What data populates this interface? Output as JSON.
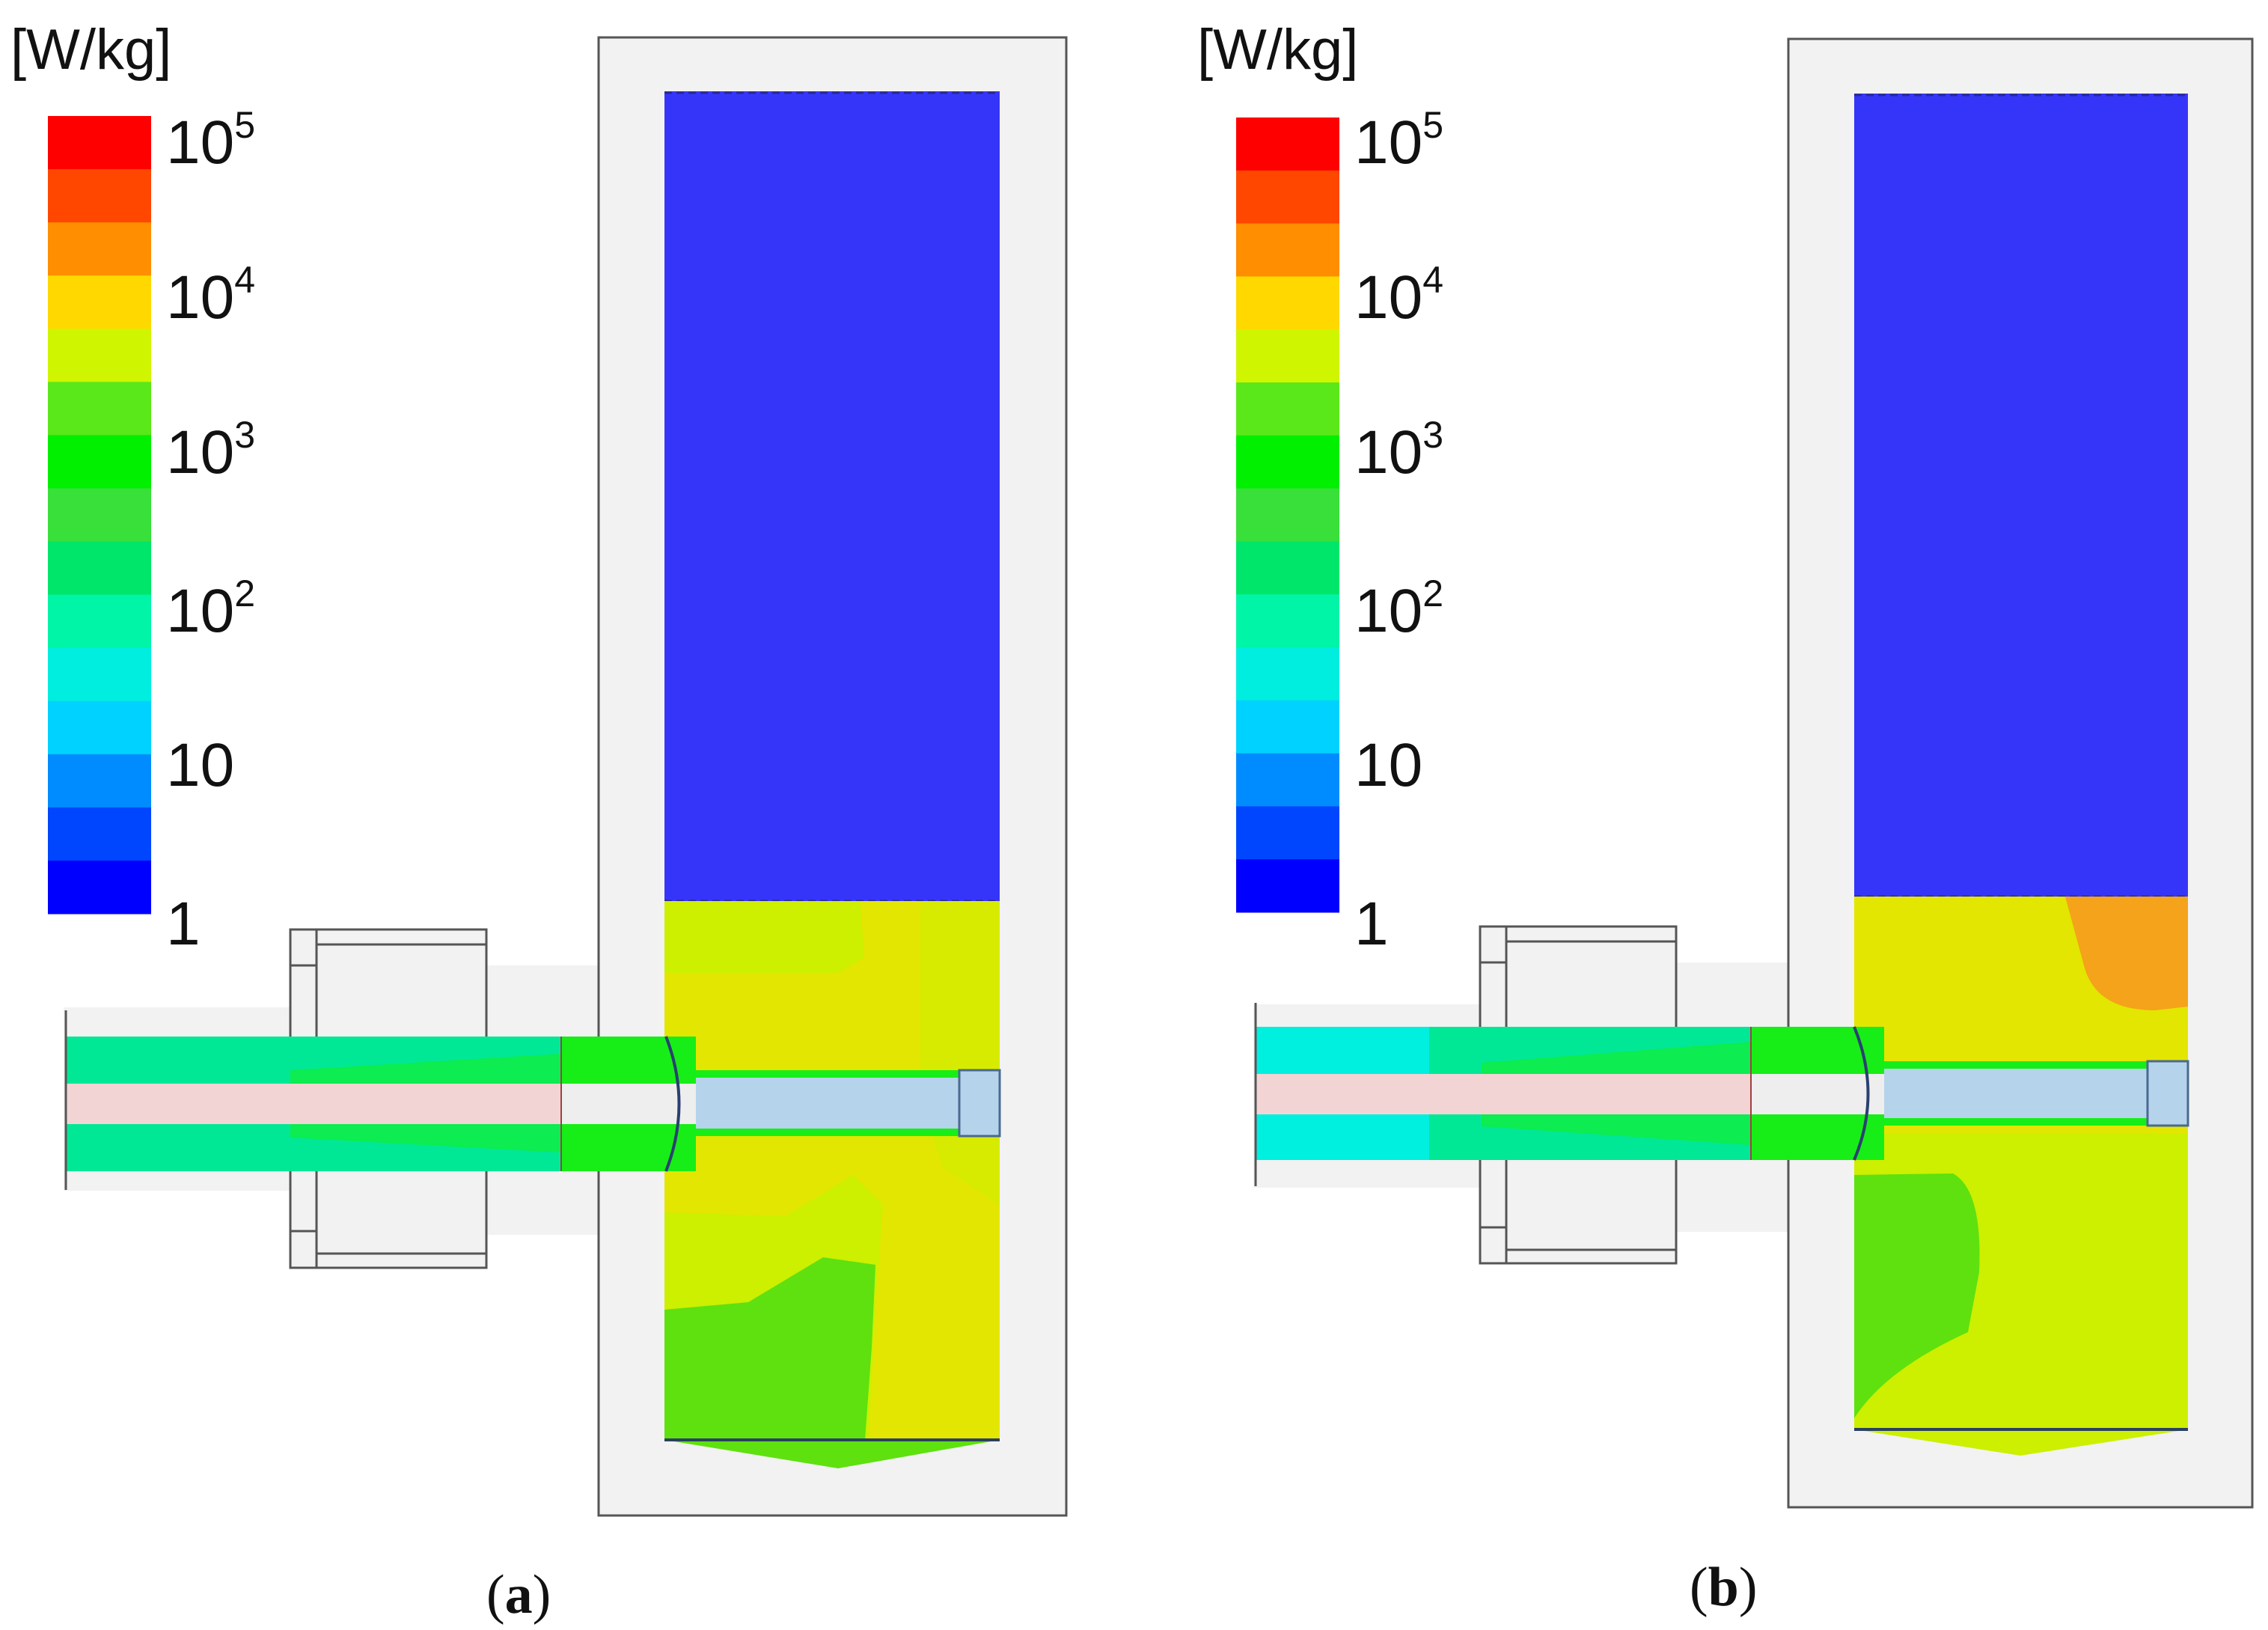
{
  "colors": {
    "legend_bands_top_to_bottom": [
      "#ff0000",
      "#ff4700",
      "#ff8e00",
      "#ffd800",
      "#d0f500",
      "#5ae81a",
      "#00f000",
      "#39e03a",
      "#00e66a",
      "#00f5a6",
      "#00eee0",
      "#00d2ff",
      "#008cff",
      "#0046ff",
      "#0000ff"
    ],
    "tank_upper": "#3535fa",
    "yellow": "#e3e600",
    "yellow_green": "#cdef00",
    "green": "#5ee10e",
    "bright_green": "#17ee17",
    "orange": "#f5a31a",
    "mint": "#00e896",
    "cyan": "#00f0e0",
    "pink_core": "#f2d4d4",
    "blue_shaft": "#b6d3ec",
    "housing_fill": "#f2f2f2",
    "housing_stroke": "#555555"
  },
  "panels": [
    {
      "id": "a",
      "unit_label": "[W/kg]",
      "ticks": [
        {
          "base": "10",
          "exp": "5"
        },
        {
          "base": "10",
          "exp": "4"
        },
        {
          "base": "10",
          "exp": "3"
        },
        {
          "base": "10",
          "exp": "2"
        },
        {
          "base": "10",
          "exp": ""
        },
        {
          "base": "1",
          "exp": ""
        }
      ],
      "caption": {
        "open": "(",
        "letter": "a",
        "close": ")"
      }
    },
    {
      "id": "b",
      "unit_label": "[W/kg]",
      "ticks": [
        {
          "base": "10",
          "exp": "5"
        },
        {
          "base": "10",
          "exp": "4"
        },
        {
          "base": "10",
          "exp": "3"
        },
        {
          "base": "10",
          "exp": "2"
        },
        {
          "base": "10",
          "exp": ""
        },
        {
          "base": "1",
          "exp": ""
        }
      ],
      "caption": {
        "open": "(",
        "letter": "b",
        "close": ")"
      }
    }
  ]
}
